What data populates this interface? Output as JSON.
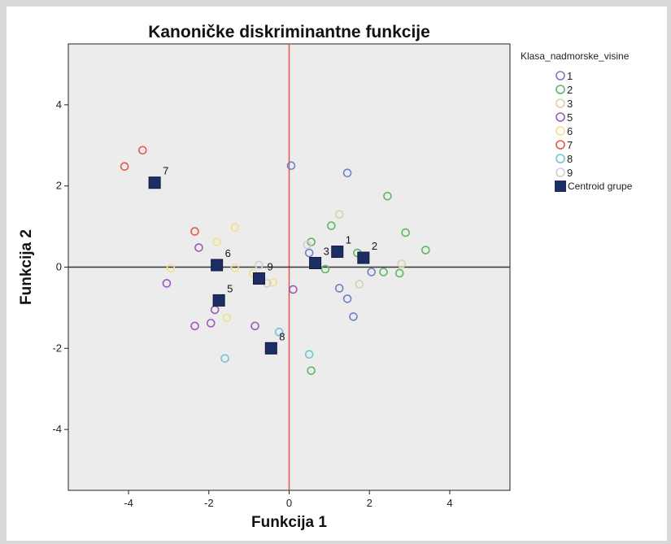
{
  "chart_data": {
    "type": "scatter",
    "title": "Kanoničke diskriminantne funkcije",
    "xlabel": "Funkcija 1",
    "ylabel": "Funkcija 2",
    "xlim": [
      -5.5,
      5.5
    ],
    "ylim": [
      -5.5,
      5.5
    ],
    "xticks": [
      -4,
      -2,
      0,
      2,
      4
    ],
    "yticks": [
      -4,
      -2,
      0,
      2,
      4
    ],
    "grid": false,
    "reference_lines": [
      {
        "axis": "x",
        "value": 0,
        "color": "#e05a4a"
      },
      {
        "axis": "y",
        "value": 0,
        "color": "#333333"
      }
    ],
    "legend": {
      "title": "Klasa_nadmorske_visine",
      "position": "right"
    },
    "series": [
      {
        "name": "1",
        "color": "#6f7fc6",
        "points": [
          [
            0.5,
            0.35
          ],
          [
            1.45,
            2.32
          ],
          [
            1.25,
            -0.52
          ],
          [
            1.45,
            -0.78
          ],
          [
            1.6,
            -1.22
          ],
          [
            2.05,
            -0.12
          ],
          [
            0.05,
            2.5
          ]
        ]
      },
      {
        "name": "2",
        "color": "#5cb85c",
        "points": [
          [
            2.45,
            1.75
          ],
          [
            2.9,
            0.85
          ],
          [
            3.4,
            0.42
          ],
          [
            1.05,
            1.02
          ],
          [
            0.55,
            0.62
          ],
          [
            1.7,
            0.35
          ],
          [
            0.9,
            -0.05
          ],
          [
            2.35,
            -0.12
          ],
          [
            2.75,
            -0.15
          ],
          [
            0.55,
            -2.55
          ]
        ]
      },
      {
        "name": "3",
        "color": "#d6d2a6",
        "points": [
          [
            1.25,
            1.3
          ],
          [
            1.75,
            -0.42
          ],
          [
            2.8,
            0.08
          ]
        ]
      },
      {
        "name": "5",
        "color": "#9b59b6",
        "points": [
          [
            -2.25,
            0.48
          ],
          [
            -3.05,
            -0.4
          ],
          [
            -1.85,
            -1.05
          ],
          [
            -1.95,
            -1.38
          ],
          [
            -2.35,
            -1.45
          ],
          [
            -0.85,
            -1.45
          ],
          [
            0.1,
            -0.55
          ]
        ]
      },
      {
        "name": "6",
        "color": "#f0e08a",
        "points": [
          [
            -1.35,
            0.98
          ],
          [
            -1.8,
            0.62
          ],
          [
            -2.95,
            -0.03
          ],
          [
            -1.35,
            -0.02
          ],
          [
            -1.55,
            -1.25
          ],
          [
            -0.4,
            -0.38
          ],
          [
            -0.9,
            -0.15
          ]
        ]
      },
      {
        "name": "7",
        "color": "#e8564a",
        "points": [
          [
            -4.1,
            2.48
          ],
          [
            -3.65,
            2.88
          ],
          [
            -2.35,
            0.88
          ]
        ]
      },
      {
        "name": "8",
        "color": "#6fc6d4",
        "points": [
          [
            -1.6,
            -2.25
          ],
          [
            -0.25,
            -1.6
          ],
          [
            0.5,
            -2.15
          ]
        ]
      },
      {
        "name": "9",
        "color": "#cfcfcf",
        "points": [
          [
            -0.55,
            -0.4
          ],
          [
            0.45,
            0.55
          ],
          [
            -0.75,
            0.05
          ]
        ]
      }
    ],
    "centroids": {
      "name": "Centroid grupe",
      "color": "#1c2e63",
      "points": [
        {
          "label": "1",
          "x": 1.2,
          "y": 0.38
        },
        {
          "label": "2",
          "x": 1.85,
          "y": 0.23
        },
        {
          "label": "3",
          "x": 0.65,
          "y": 0.1
        },
        {
          "label": "5",
          "x": -1.75,
          "y": -0.82
        },
        {
          "label": "6",
          "x": -1.8,
          "y": 0.05
        },
        {
          "label": "7",
          "x": -3.35,
          "y": 2.08
        },
        {
          "label": "8",
          "x": -0.45,
          "y": -2.0
        },
        {
          "label": "9",
          "x": -0.75,
          "y": -0.28
        }
      ]
    }
  }
}
